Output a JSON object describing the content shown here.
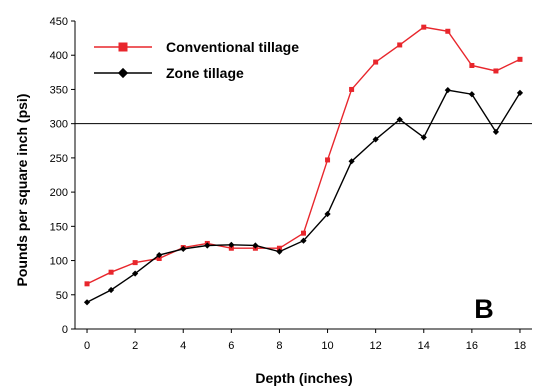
{
  "chart_data": {
    "type": "line",
    "xlabel": "Depth (inches)",
    "ylabel": "Pounds per square inch (psi)",
    "panel_label": "B",
    "xlim": [
      -0.5,
      18.5
    ],
    "ylim": [
      0,
      450
    ],
    "x_ticks": [
      0,
      2,
      4,
      6,
      8,
      10,
      12,
      14,
      16,
      18
    ],
    "y_ticks": [
      0,
      50,
      100,
      150,
      200,
      250,
      300,
      350,
      400,
      450
    ],
    "x_tick_labels": [
      "0",
      "2",
      "4",
      "6",
      "8",
      "10",
      "12",
      "14",
      "16",
      "18"
    ],
    "y_tick_labels": [
      "0",
      "50",
      "100",
      "150",
      "200",
      "250",
      "300",
      "350",
      "400",
      "450"
    ],
    "reference_line_y": 300,
    "grid": false,
    "legend_position": "top-left",
    "x": [
      0,
      1,
      2,
      3,
      4,
      5,
      6,
      7,
      8,
      9,
      10,
      11,
      12,
      13,
      14,
      15,
      16,
      17,
      18
    ],
    "series": [
      {
        "name": "Conventional tillage",
        "color": "#e8262c",
        "marker": "square",
        "values": [
          66,
          83,
          97,
          103,
          119,
          125,
          118,
          118,
          118,
          140,
          247,
          350,
          390,
          415,
          441,
          435,
          385,
          377,
          394
        ]
      },
      {
        "name": "Zone tillage",
        "color": "#000000",
        "marker": "diamond",
        "values": [
          39,
          57,
          81,
          108,
          117,
          122,
          123,
          122,
          113,
          129,
          168,
          245,
          277,
          306,
          280,
          349,
          343,
          288,
          345
        ]
      }
    ]
  }
}
